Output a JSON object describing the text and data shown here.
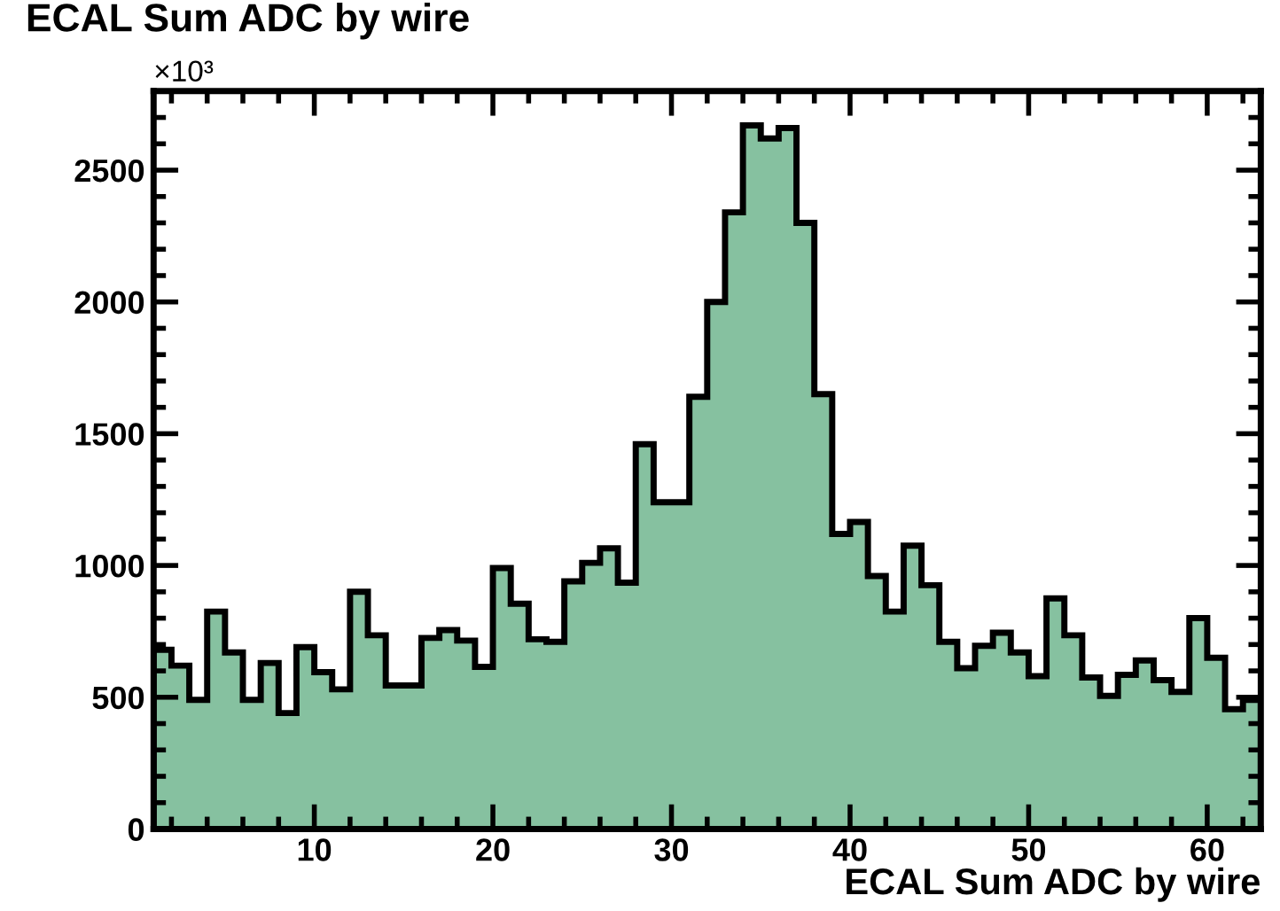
{
  "chart_data": {
    "type": "histogram",
    "title": "ECAL Sum ADC by wire",
    "xlabel": "ECAL Sum ADC by wire",
    "annotations": [
      "×10³"
    ],
    "bins": [
      1,
      2,
      3,
      4,
      5,
      6,
      7,
      8,
      9,
      10,
      11,
      12,
      13,
      14,
      15,
      16,
      17,
      18,
      19,
      20,
      21,
      22,
      23,
      24,
      25,
      26,
      27,
      28,
      29,
      30,
      31,
      32,
      33,
      34,
      35,
      36,
      37,
      38,
      39,
      40,
      41,
      42,
      43,
      44,
      45,
      46,
      47,
      48,
      49,
      50,
      51,
      52,
      53,
      54,
      55,
      56,
      57,
      58,
      59,
      60,
      61,
      62,
      63
    ],
    "values": [
      680,
      620,
      490,
      825,
      670,
      490,
      630,
      440,
      690,
      595,
      530,
      900,
      735,
      545,
      545,
      725,
      755,
      715,
      615,
      990,
      855,
      720,
      710,
      940,
      1010,
      1065,
      935,
      1460,
      1240,
      1240,
      1640,
      2000,
      2340,
      2670,
      2620,
      2660,
      2300,
      1650,
      1120,
      1165,
      960,
      825,
      1075,
      925,
      710,
      610,
      695,
      745,
      670,
      580,
      875,
      735,
      575,
      505,
      585,
      640,
      565,
      520,
      800,
      650,
      455,
      490
    ],
    "color": "#86c1a0",
    "xlim": [
      1,
      63
    ],
    "ylim": [
      0,
      2800
    ],
    "xticks": [
      10,
      20,
      30,
      40,
      50,
      60
    ],
    "yticks": [
      0,
      500,
      1000,
      1500,
      2000,
      2500
    ],
    "grid": false
  }
}
